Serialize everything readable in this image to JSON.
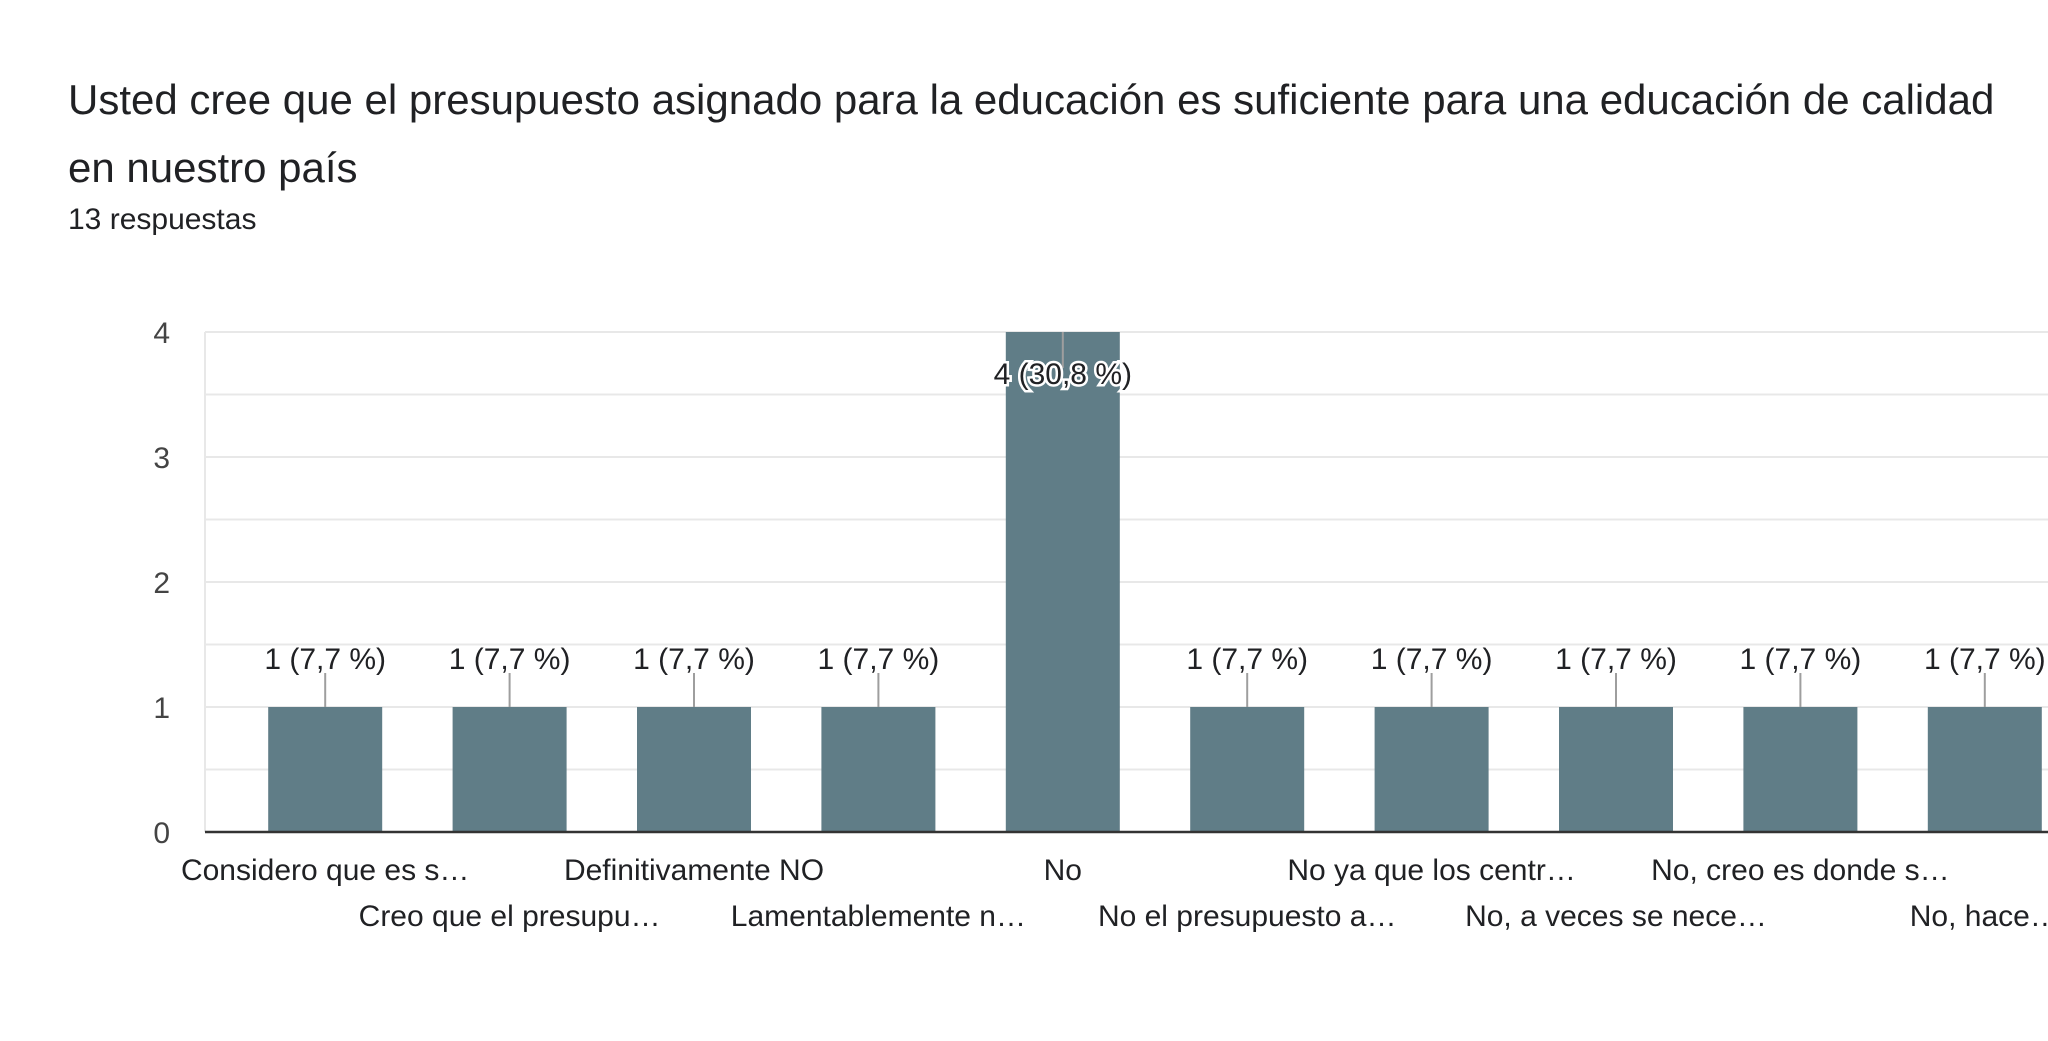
{
  "title": "Usted cree que el presupuesto asignado para la educación es suficiente para una educación de calidad en nuestro país",
  "subtitle": "13 respuestas",
  "colors": {
    "bar": "#607d87",
    "grid": "#e8e8e8",
    "axis": "#333333",
    "text": "#202124",
    "tick": "#444444"
  },
  "chart_data": {
    "type": "bar",
    "title": "Usted cree que el presupuesto asignado para la educación es suficiente para una educación de calidad en nuestro país",
    "xlabel": "",
    "ylabel": "",
    "ylim": [
      0,
      4
    ],
    "yticks": [
      0,
      1,
      2,
      3,
      4
    ],
    "categories": [
      "Considero que es s…",
      "Creo que el presupu…",
      "Definitivamente NO",
      "Lamentablemente n…",
      "No",
      "No el presupuesto a…",
      "No ya que los centr…",
      "No, a veces se nece…",
      "No, creo es donde s…",
      "No, hace…"
    ],
    "values": [
      1,
      1,
      1,
      1,
      4,
      1,
      1,
      1,
      1,
      1
    ],
    "data_labels": [
      "1 (7,7 %)",
      "1 (7,7 %)",
      "1 (7,7 %)",
      "1 (7,7 %)",
      "4 (30,8 %)",
      "1 (7,7 %)",
      "1 (7,7 %)",
      "1 (7,7 %)",
      "1 (7,7 %)",
      "1 (7,7 %)"
    ]
  }
}
